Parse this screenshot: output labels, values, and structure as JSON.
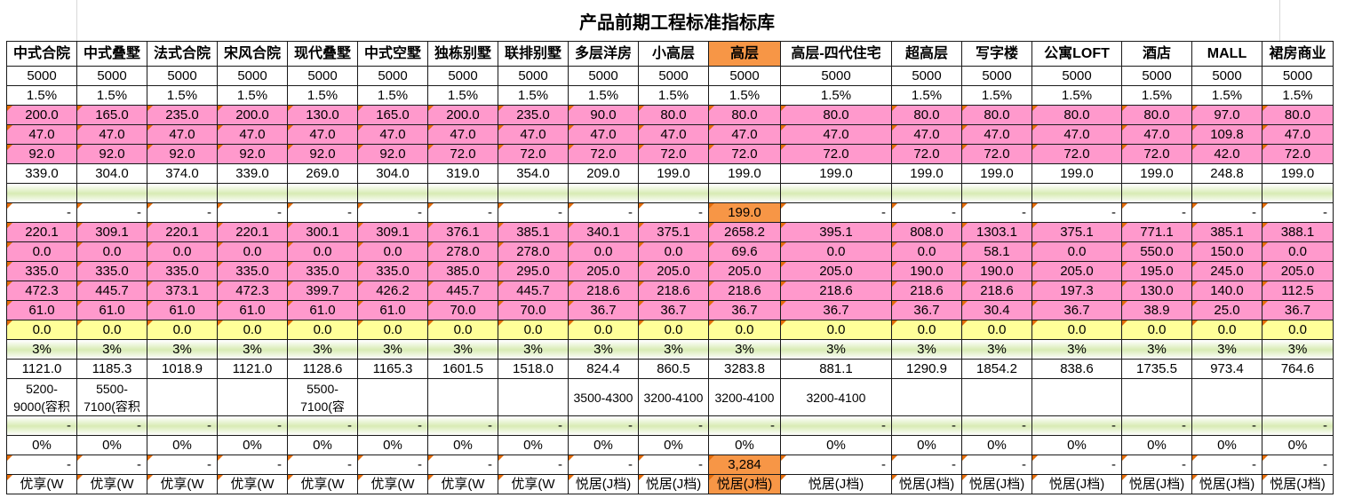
{
  "title": "产品前期工程标准指标库",
  "columns": [
    "中式合院",
    "中式叠墅",
    "法式合院",
    "宋风合院",
    "现代叠墅",
    "中式空墅",
    "独栋别墅",
    "联排别墅",
    "多层洋房",
    "小高层",
    "高层",
    "高层-四代住宅",
    "超高层",
    "写字楼",
    "公寓LOFT",
    "酒店",
    "MALL",
    "裙房商业"
  ],
  "highlight_col": 10,
  "rows": [
    {
      "type": "white",
      "cells": [
        "5000",
        "5000",
        "5000",
        "5000",
        "5000",
        "5000",
        "5000",
        "5000",
        "5000",
        "5000",
        "5000",
        "5000",
        "5000",
        "5000",
        "5000",
        "5000",
        "5000",
        "5000"
      ]
    },
    {
      "type": "white",
      "cells": [
        "1.5%",
        "1.5%",
        "1.5%",
        "1.5%",
        "1.5%",
        "1.5%",
        "1.5%",
        "1.5%",
        "1.5%",
        "1.5%",
        "1.5%",
        "1.5%",
        "1.5%",
        "1.5%",
        "1.5%",
        "1.5%",
        "1.5%",
        "1.5%"
      ]
    },
    {
      "type": "pink",
      "cells": [
        "200.0",
        "165.0",
        "235.0",
        "200.0",
        "130.0",
        "165.0",
        "200.0",
        "235.0",
        "90.0",
        "80.0",
        "80.0",
        "80.0",
        "80.0",
        "80.0",
        "80.0",
        "80.0",
        "97.0",
        "80.0"
      ]
    },
    {
      "type": "pink",
      "cells": [
        "47.0",
        "47.0",
        "47.0",
        "47.0",
        "47.0",
        "47.0",
        "47.0",
        "47.0",
        "47.0",
        "47.0",
        "47.0",
        "47.0",
        "47.0",
        "47.0",
        "47.0",
        "47.0",
        "109.8",
        "47.0"
      ]
    },
    {
      "type": "pink",
      "cells": [
        "92.0",
        "92.0",
        "92.0",
        "92.0",
        "92.0",
        "92.0",
        "72.0",
        "72.0",
        "72.0",
        "72.0",
        "72.0",
        "72.0",
        "72.0",
        "72.0",
        "72.0",
        "72.0",
        "42.0",
        "72.0"
      ]
    },
    {
      "type": "white",
      "cells": [
        "339.0",
        "304.0",
        "374.0",
        "339.0",
        "269.0",
        "304.0",
        "319.0",
        "354.0",
        "209.0",
        "199.0",
        "199.0",
        "199.0",
        "199.0",
        "199.0",
        "199.0",
        "199.0",
        "248.8",
        "199.0"
      ]
    },
    {
      "type": "green",
      "cells": [
        "",
        "",
        "",
        "",
        "",
        "",
        "",
        "",
        "",
        "",
        "",
        "",
        "",
        "",
        "",
        "",
        "",
        ""
      ]
    },
    {
      "type": "dash",
      "cells": [
        "-",
        "-",
        "-",
        "-",
        "-",
        "-",
        "-",
        "-",
        "-",
        "-",
        "199.0",
        "-",
        "-",
        "-",
        "-",
        "-",
        "-",
        "-"
      ]
    },
    {
      "type": "pink",
      "cells": [
        "220.1",
        "309.1",
        "220.1",
        "220.1",
        "300.1",
        "309.1",
        "376.1",
        "385.1",
        "340.1",
        "375.1",
        "2658.2",
        "395.1",
        "808.0",
        "1303.1",
        "375.1",
        "771.1",
        "385.1",
        "388.1"
      ]
    },
    {
      "type": "pink",
      "cells": [
        "0.0",
        "0.0",
        "0.0",
        "0.0",
        "0.0",
        "0.0",
        "278.0",
        "278.0",
        "0.0",
        "0.0",
        "69.6",
        "0.0",
        "0.0",
        "58.1",
        "0.0",
        "550.0",
        "150.0",
        "0.0"
      ]
    },
    {
      "type": "pink",
      "cells": [
        "335.0",
        "335.0",
        "335.0",
        "335.0",
        "335.0",
        "335.0",
        "385.0",
        "295.0",
        "205.0",
        "205.0",
        "205.0",
        "205.0",
        "190.0",
        "190.0",
        "205.0",
        "195.0",
        "245.0",
        "205.0"
      ]
    },
    {
      "type": "pink",
      "cells": [
        "472.3",
        "445.7",
        "373.1",
        "472.3",
        "399.7",
        "426.2",
        "445.7",
        "445.7",
        "218.6",
        "218.6",
        "218.6",
        "218.6",
        "218.6",
        "218.6",
        "197.3",
        "130.0",
        "140.0",
        "112.5"
      ]
    },
    {
      "type": "pink",
      "cells": [
        "61.0",
        "61.0",
        "61.0",
        "61.0",
        "61.0",
        "61.0",
        "70.0",
        "70.0",
        "36.7",
        "36.7",
        "36.7",
        "36.7",
        "36.7",
        "30.4",
        "36.7",
        "38.9",
        "25.0",
        "36.7"
      ]
    },
    {
      "type": "yellow",
      "cells": [
        "0.0",
        "0.0",
        "0.0",
        "0.0",
        "0.0",
        "0.0",
        "0.0",
        "0.0",
        "0.0",
        "0.0",
        "0.0",
        "0.0",
        "0.0",
        "0.0",
        "0.0",
        "0.0",
        "0.0",
        "0.0"
      ]
    },
    {
      "type": "green",
      "cells": [
        "3%",
        "3%",
        "3%",
        "3%",
        "3%",
        "3%",
        "3%",
        "3%",
        "3%",
        "3%",
        "3%",
        "3%",
        "3%",
        "3%",
        "3%",
        "3%",
        "3%",
        "3%"
      ]
    },
    {
      "type": "white",
      "cells": [
        "1121.0",
        "1185.3",
        "1018.9",
        "1121.0",
        "1128.6",
        "1165.3",
        "1601.5",
        "1518.0",
        "824.4",
        "860.5",
        "3283.8",
        "881.1",
        "1290.9",
        "1854.2",
        "838.6",
        "1735.5",
        "973.4",
        "764.6"
      ]
    },
    {
      "type": "wrap",
      "cells": [
        "5200-9000(容积",
        "5500-7100(容积",
        "",
        "",
        "5500-7100(容",
        "",
        "",
        "",
        "3500-4300",
        "3200-4100",
        "3200-4100",
        "3200-4100",
        "",
        "",
        "",
        "",
        "",
        ""
      ]
    },
    {
      "type": "greendash",
      "cells": [
        "-",
        "-",
        "-",
        "-",
        "-",
        "-",
        "-",
        "-",
        "-",
        "-",
        "-",
        "-",
        "-",
        "-",
        "-",
        "-",
        "-",
        "-"
      ]
    },
    {
      "type": "white",
      "cells": [
        "0%",
        "0%",
        "0%",
        "0%",
        "0%",
        "0%",
        "0%",
        "0%",
        "0%",
        "0%",
        "0%",
        "0%",
        "0%",
        "0%",
        "0%",
        "0%",
        "0%",
        "0%"
      ]
    },
    {
      "type": "dash",
      "cells": [
        "-",
        "-",
        "-",
        "-",
        "-",
        "-",
        "-",
        "-",
        "-",
        "-",
        "3,284",
        "-",
        "-",
        "-",
        "-",
        "-",
        "-",
        "-"
      ]
    },
    {
      "type": "last",
      "cells": [
        "优享(W",
        "优享(W",
        "优享(W",
        "优享(W",
        "优享(W",
        "优享(W",
        "优享(W",
        "优享(W",
        "悦居(J档)",
        "悦居(J档)",
        "悦居(J档)",
        "悦居(J档)",
        "悦居(J档)",
        "悦居(J档)",
        "悦居(J档)",
        "悦居(J档)",
        "悦居(J档)",
        "悦居(J档)"
      ]
    }
  ]
}
